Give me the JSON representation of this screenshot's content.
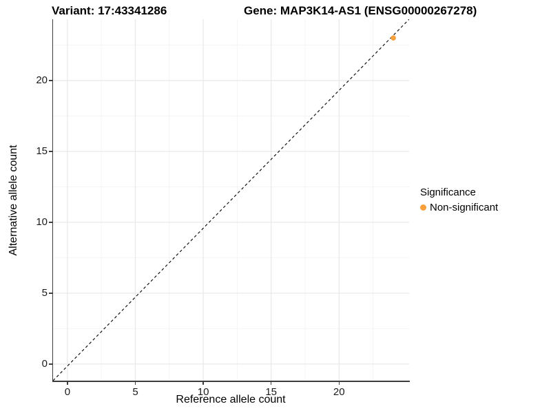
{
  "figure": {
    "title_left": "Variant: 17:43341286",
    "title_right": "Gene: MAP3K14-AS1 (ENSG00000267278)"
  },
  "chart_data": {
    "type": "scatter",
    "xlabel": "Reference allele count",
    "ylabel": "Alternative allele count",
    "x_ticks": [
      0,
      5,
      10,
      15,
      20
    ],
    "y_ticks": [
      0,
      5,
      10,
      15,
      20
    ],
    "x_minor_ticks": [
      2.5,
      7.5,
      12.5,
      17.5,
      22.5
    ],
    "y_minor_ticks": [
      2.5,
      7.5,
      12.5,
      17.5,
      22.5
    ],
    "x_range": [
      -1.06,
      25.16
    ],
    "y_range": [
      -1.17,
      24.32
    ],
    "grid": true,
    "points": [
      {
        "x": 24,
        "y": 23,
        "series": "Non-significant"
      }
    ],
    "diagonal_line": {
      "style": "dashed",
      "color": "#111111",
      "x1": -1.06,
      "y1": -1.17,
      "x2": 25.16,
      "y2": 24.32
    },
    "legend": {
      "title": "Significance",
      "position": "right",
      "items": [
        {
          "label": "Non-significant",
          "color": "#F9A03C"
        }
      ]
    },
    "colors": {
      "point": "#F9A03C",
      "axis": "#3c3c3c",
      "grid_major": "#e8e8e8",
      "grid_minor": "#f4f4f4",
      "tick_label": "#1a1a1a"
    }
  }
}
